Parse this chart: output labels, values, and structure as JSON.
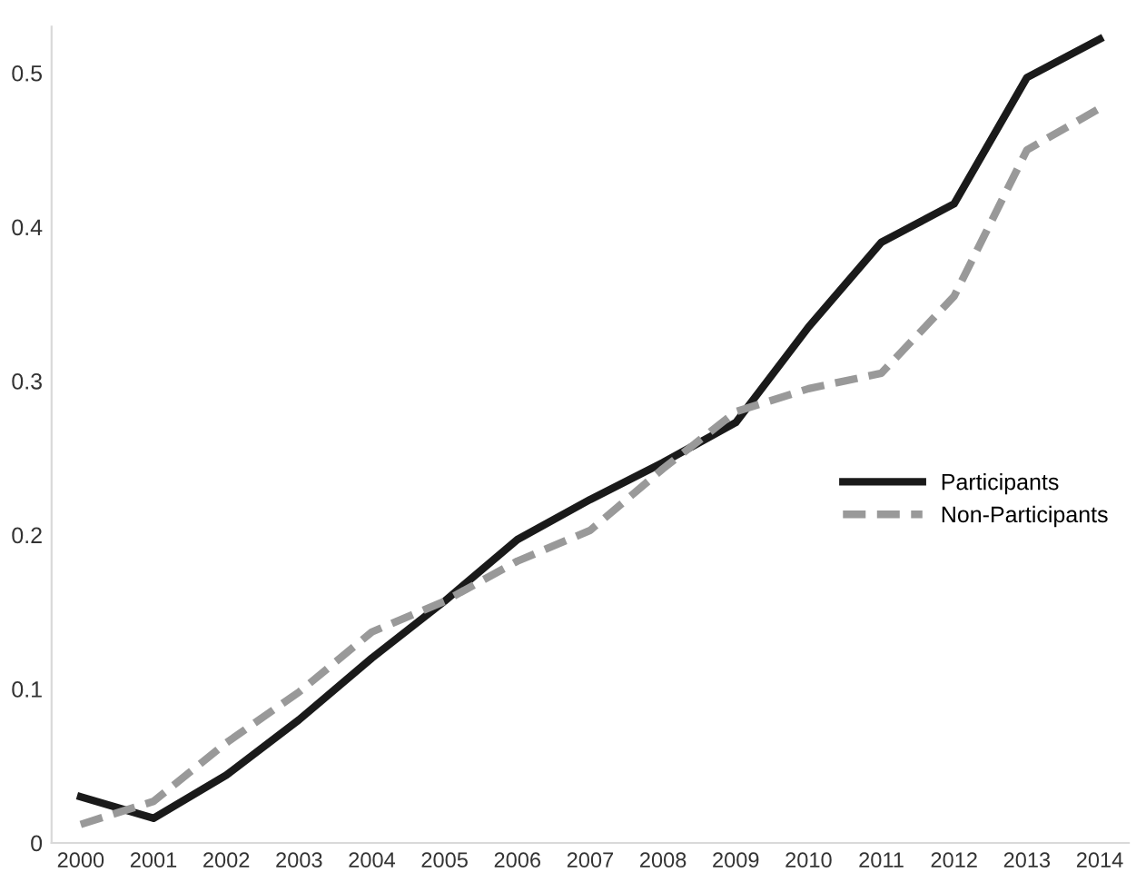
{
  "chart_data": {
    "type": "line",
    "categories": [
      "2000",
      "2001",
      "2002",
      "2003",
      "2004",
      "2005",
      "2006",
      "2007",
      "2008",
      "2009",
      "2010",
      "2011",
      "2012",
      "2013",
      "2014"
    ],
    "series": [
      {
        "name": "Participants",
        "color": "#1a1a1a",
        "line_style": "solid",
        "values": [
          0.03,
          0.016,
          0.044,
          0.08,
          0.12,
          0.157,
          0.197,
          0.223,
          0.247,
          0.273,
          0.335,
          0.39,
          0.415,
          0.497,
          0.522
        ]
      },
      {
        "name": "Non-Participants",
        "color": "#999999",
        "line_style": "dashed",
        "values": [
          0.012,
          0.027,
          0.065,
          0.098,
          0.137,
          0.157,
          0.183,
          0.203,
          0.243,
          0.28,
          0.295,
          0.305,
          0.355,
          0.45,
          0.477
        ]
      }
    ],
    "ylim": [
      0,
      0.53
    ],
    "yticks": [
      0,
      0.1,
      0.2,
      0.3,
      0.4,
      0.5
    ],
    "grid": false,
    "legend": "right",
    "marker": "none"
  }
}
